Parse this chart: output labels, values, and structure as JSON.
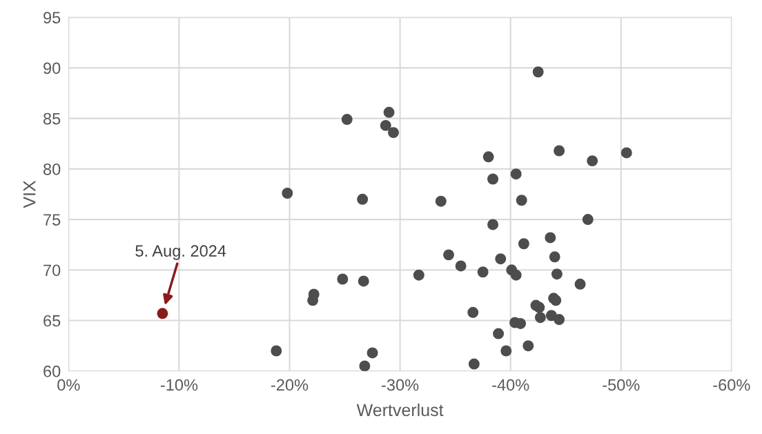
{
  "chart_data": {
    "type": "scatter",
    "xlabel": "Wertverlust",
    "ylabel": "VIX",
    "xlim": [
      0,
      -60
    ],
    "ylim": [
      60,
      95
    ],
    "xticks": [
      {
        "value": 0,
        "label": "0%"
      },
      {
        "value": -10,
        "label": "-10%"
      },
      {
        "value": -20,
        "label": "-20%"
      },
      {
        "value": -30,
        "label": "-30%"
      },
      {
        "value": -40,
        "label": "-40%"
      },
      {
        "value": -50,
        "label": "-50%"
      },
      {
        "value": -60,
        "label": "-60%"
      }
    ],
    "yticks": [
      60,
      65,
      70,
      75,
      80,
      85,
      90,
      95
    ],
    "grid": true,
    "marker": "circle",
    "series": [
      {
        "color": "#4d4d4d",
        "x": [
          -18.8,
          -19.8,
          -22.1,
          -22.2,
          -24.8,
          -25.2,
          -26.6,
          -26.7,
          -26.8,
          -27.5,
          -28.7,
          -29.0,
          -29.4,
          -31.7,
          -33.7,
          -34.4,
          -35.5,
          -36.6,
          -36.7,
          -37.5,
          -38.0,
          -38.4,
          -38.4,
          -38.9,
          -39.1,
          -39.6,
          -40.1,
          -40.4,
          -40.5,
          -40.5,
          -40.9,
          -41.0,
          -41.2,
          -41.6,
          -42.5,
          -42.3,
          -42.6,
          -42.7,
          -43.6,
          -43.7,
          -43.9,
          -44.0,
          -44.1,
          -44.2,
          -44.4,
          -44.4,
          -46.3,
          -47.0,
          -47.4,
          -50.5
        ],
        "values": [
          62.0,
          77.6,
          67.0,
          67.6,
          69.1,
          84.9,
          77.0,
          68.9,
          60.5,
          61.8,
          84.3,
          85.6,
          83.6,
          69.5,
          76.8,
          71.5,
          70.4,
          65.8,
          60.7,
          69.8,
          81.2,
          79.0,
          74.5,
          63.7,
          71.1,
          62.0,
          70.0,
          64.8,
          69.5,
          79.5,
          64.7,
          76.9,
          72.6,
          62.5,
          89.6,
          66.5,
          66.3,
          65.3,
          73.2,
          65.5,
          67.2,
          71.3,
          67.0,
          69.6,
          81.8,
          65.1,
          68.6,
          75.0,
          80.8,
          81.6
        ]
      },
      {
        "color": "#8b1a1a",
        "x": [
          -8.5
        ],
        "values": [
          65.7
        ]
      }
    ],
    "annotations": [
      "5. Aug. 2024"
    ]
  }
}
